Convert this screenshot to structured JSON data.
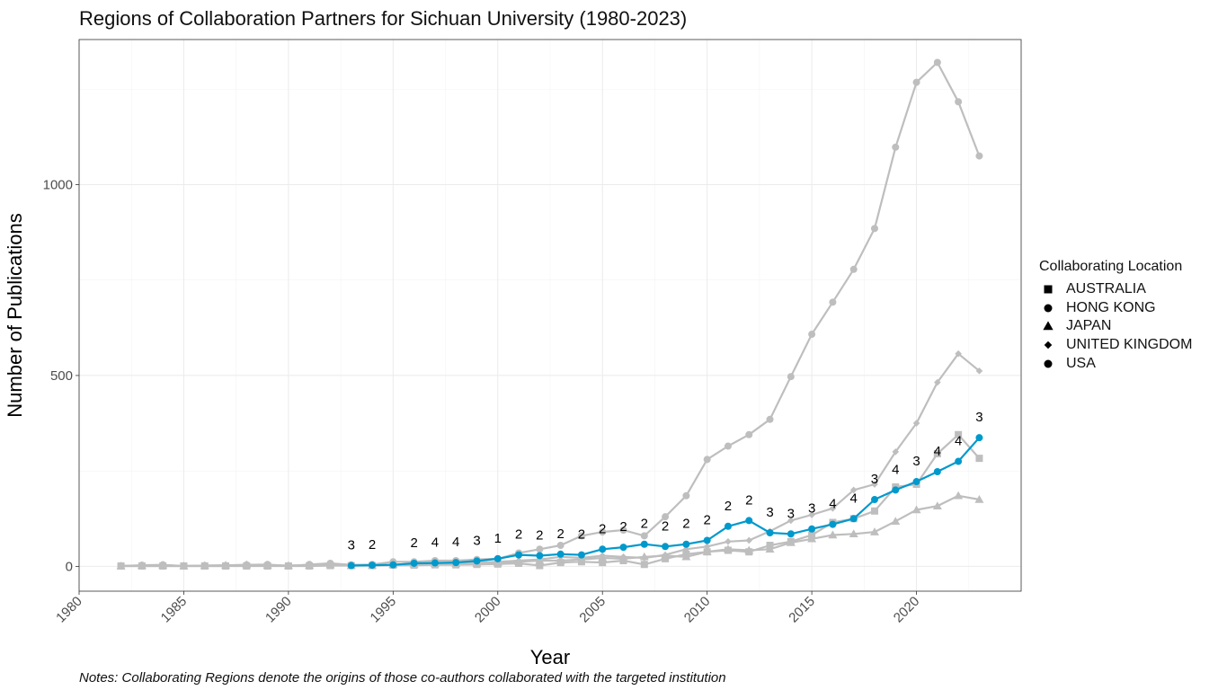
{
  "chart_data": {
    "type": "line",
    "title": "Regions of Collaboration Partners for Sichuan University (1980-2023)",
    "xlabel": "Year",
    "ylabel": "Number of Publications",
    "xlim": [
      1980,
      2025
    ],
    "ylim": [
      -65,
      1380
    ],
    "x_ticks": [
      1980,
      1985,
      1990,
      1995,
      2000,
      2005,
      2010,
      2015,
      2020
    ],
    "y_ticks": [
      0,
      500,
      1000
    ],
    "grid": true,
    "legend_title": "Collaborating Location",
    "legend_position": "right",
    "notes": "Notes: Collaborating Regions denote the origins of those co-authors collaborated with the targeted institution",
    "highlight_color": "#0099CC",
    "background_series_color": "#BEBEBE",
    "series": [
      {
        "name": "AUSTRALIA",
        "shape": "square",
        "highlighted": false,
        "x": [
          1982,
          1983,
          1984,
          1985,
          1986,
          1987,
          1988,
          1989,
          1990,
          1991,
          1992,
          1993,
          1994,
          1995,
          1996,
          1997,
          1998,
          1999,
          2000,
          2001,
          2002,
          2003,
          2004,
          2005,
          2006,
          2007,
          2008,
          2009,
          2010,
          2011,
          2012,
          2013,
          2014,
          2015,
          2016,
          2017,
          2018,
          2019,
          2020,
          2021,
          2022,
          2023
        ],
        "y": [
          1,
          1,
          1,
          1,
          1,
          1,
          1,
          1,
          1,
          1,
          2,
          2,
          2,
          3,
          3,
          4,
          4,
          5,
          6,
          8,
          2,
          10,
          12,
          10,
          15,
          5,
          20,
          32,
          38,
          42,
          38,
          55,
          65,
          82,
          115,
          125,
          145,
          208,
          215,
          295,
          345,
          283
        ]
      },
      {
        "name": "HONG KONG",
        "shape": "circle",
        "highlighted": false,
        "x": [
          1982,
          1983,
          1984,
          1985,
          1986,
          1987,
          1988,
          1989,
          1990,
          1991,
          1992,
          1993,
          1994,
          1995,
          1996,
          1997,
          1998,
          1999,
          2000,
          2001,
          2002,
          2003,
          2004,
          2005,
          2006,
          2007,
          2008,
          2009,
          2010,
          2011,
          2012,
          2013,
          2014,
          2015,
          2016,
          2017,
          2018,
          2019,
          2020,
          2021,
          2022,
          2023
        ],
        "y": [
          1,
          3,
          4,
          1,
          2,
          2,
          4,
          5,
          1,
          5,
          8,
          4,
          5,
          12,
          12,
          15,
          15,
          18,
          20,
          35,
          45,
          55,
          80,
          90,
          95,
          80,
          130,
          185,
          280,
          315,
          345,
          385,
          497,
          608,
          692,
          778,
          885,
          1098,
          1268,
          1320,
          1217,
          1075
        ]
      },
      {
        "name": "JAPAN",
        "shape": "triangle",
        "highlighted": false,
        "x": [
          1982,
          1983,
          1984,
          1985,
          1986,
          1987,
          1988,
          1989,
          1990,
          1991,
          1992,
          1993,
          1994,
          1995,
          1996,
          1997,
          1998,
          1999,
          2000,
          2001,
          2002,
          2003,
          2004,
          2005,
          2006,
          2007,
          2008,
          2009,
          2010,
          2011,
          2012,
          2013,
          2014,
          2015,
          2016,
          2017,
          2018,
          2019,
          2020,
          2021,
          2022,
          2023
        ],
        "y": [
          1,
          2,
          3,
          1,
          2,
          3,
          4,
          3,
          2,
          3,
          4,
          2,
          3,
          5,
          6,
          7,
          7,
          8,
          10,
          12,
          15,
          15,
          18,
          22,
          20,
          25,
          28,
          25,
          38,
          45,
          42,
          45,
          62,
          72,
          82,
          85,
          90,
          118,
          148,
          158,
          185,
          175
        ]
      },
      {
        "name": "UNITED KINGDOM",
        "shape": "diamond",
        "highlighted": false,
        "x": [
          1982,
          1983,
          1984,
          1985,
          1986,
          1987,
          1988,
          1989,
          1990,
          1991,
          1992,
          1993,
          1994,
          1995,
          1996,
          1997,
          1998,
          1999,
          2000,
          2001,
          2002,
          2003,
          2004,
          2005,
          2006,
          2007,
          2008,
          2009,
          2010,
          2011,
          2012,
          2013,
          2014,
          2015,
          2016,
          2017,
          2018,
          2019,
          2020,
          2021,
          2022,
          2023
        ],
        "y": [
          1,
          1,
          1,
          1,
          1,
          1,
          2,
          2,
          2,
          3,
          3,
          3,
          4,
          4,
          5,
          6,
          8,
          10,
          12,
          15,
          18,
          25,
          22,
          28,
          25,
          22,
          30,
          45,
          52,
          65,
          68,
          92,
          120,
          135,
          152,
          200,
          215,
          300,
          375,
          482,
          557,
          512
        ]
      },
      {
        "name": "USA",
        "shape": "circle",
        "highlighted": true,
        "x": [
          1993,
          1994,
          1995,
          1996,
          1997,
          1998,
          1999,
          2000,
          2001,
          2002,
          2003,
          2004,
          2005,
          2006,
          2007,
          2008,
          2009,
          2010,
          2011,
          2012,
          2013,
          2014,
          2015,
          2016,
          2017,
          2018,
          2019,
          2020,
          2021,
          2022,
          2023
        ],
        "y": [
          2,
          3,
          4,
          8,
          9,
          10,
          14,
          20,
          30,
          28,
          32,
          30,
          45,
          50,
          58,
          52,
          58,
          68,
          105,
          120,
          88,
          85,
          98,
          110,
          125,
          175,
          200,
          222,
          248,
          275,
          337
        ],
        "rank_labels": [
          "3",
          "2",
          "",
          "2",
          "4",
          "4",
          "3",
          "1",
          "2",
          "2",
          "2",
          "2",
          "2",
          "2",
          "2",
          "2",
          "2",
          "2",
          "2",
          "2",
          "3",
          "3",
          "3",
          "4",
          "4",
          "3",
          "4",
          "3",
          "4",
          "4",
          "3"
        ]
      }
    ]
  }
}
